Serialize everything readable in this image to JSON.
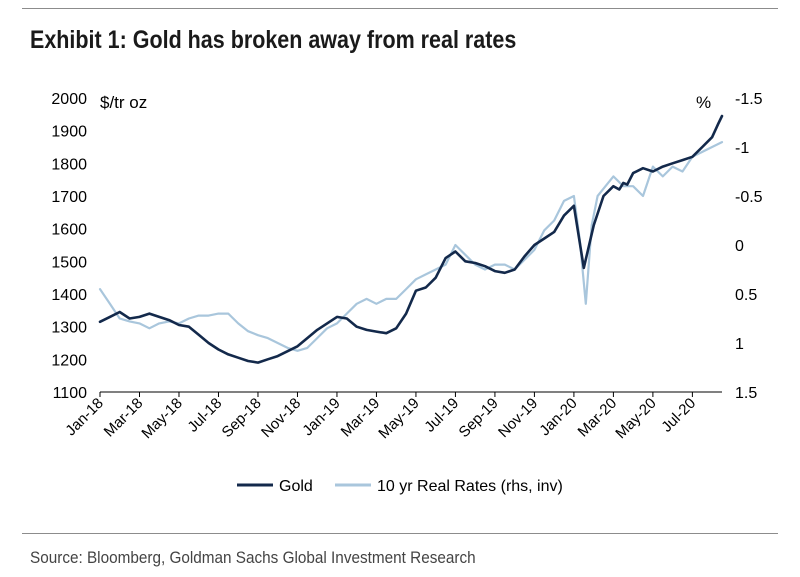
{
  "chart_data": {
    "type": "line",
    "title": "Exhibit 1: Gold has broken away from real rates",
    "source": "Source: Bloomberg, Goldman Sachs Global Investment Research",
    "left_unit": "$/tr oz",
    "right_unit": "%",
    "ylim_left": [
      1100,
      2000
    ],
    "yticks_left": [
      "2000",
      "1900",
      "1800",
      "1700",
      "1600",
      "1500",
      "1400",
      "1300",
      "1200",
      "1100"
    ],
    "ylim_right_inverted": [
      1.5,
      -1.5
    ],
    "yticks_right": [
      "-1.5",
      "-1",
      "-0.5",
      "0",
      "0.5",
      "1",
      "1.5"
    ],
    "xticks": [
      "Jan-18",
      "Mar-18",
      "May-18",
      "Jul-18",
      "Sep-18",
      "Nov-18",
      "Jan-19",
      "Mar-19",
      "May-19",
      "Jul-19",
      "Sep-19",
      "Nov-19",
      "Jan-20",
      "Mar-20",
      "May-20",
      "Jul-20"
    ],
    "series": [
      {
        "name": "Gold",
        "axis": "left",
        "color": "#13294b",
        "x": [
          0,
          0.5,
          1,
          1.5,
          2,
          2.5,
          3,
          3.5,
          4,
          4.5,
          5,
          5.5,
          6,
          6.5,
          7,
          7.5,
          8,
          8.5,
          9,
          9.5,
          10,
          10.5,
          11,
          11.5,
          12,
          12.5,
          13,
          13.5,
          14,
          14.5,
          15,
          15.5,
          16,
          16.5,
          17,
          17.5,
          18,
          18.5,
          19,
          19.5,
          20,
          20.5,
          21,
          21.5,
          22,
          22.5,
          23,
          23.5,
          24,
          24.5,
          25,
          25.5,
          26,
          26.3,
          26.5,
          26.7,
          27,
          27.5,
          28,
          28.5,
          29,
          29.5,
          30,
          30.5,
          31,
          31.3,
          31.5
        ],
        "values": [
          1315,
          1330,
          1345,
          1325,
          1330,
          1340,
          1330,
          1320,
          1305,
          1300,
          1275,
          1250,
          1230,
          1215,
          1205,
          1195,
          1190,
          1200,
          1210,
          1225,
          1240,
          1265,
          1290,
          1310,
          1330,
          1325,
          1300,
          1290,
          1285,
          1280,
          1295,
          1340,
          1410,
          1420,
          1450,
          1510,
          1530,
          1500,
          1495,
          1485,
          1470,
          1465,
          1475,
          1515,
          1550,
          1570,
          1590,
          1640,
          1670,
          1480,
          1610,
          1700,
          1730,
          1720,
          1740,
          1735,
          1770,
          1785,
          1775,
          1790,
          1800,
          1810,
          1820,
          1850,
          1880,
          1920,
          1945
        ]
      },
      {
        "name": "10 yr Real Rates (rhs, inv)",
        "axis": "right",
        "color": "#a9c6dc",
        "x": [
          0,
          0.5,
          1,
          1.5,
          2,
          2.5,
          3,
          3.5,
          4,
          4.5,
          5,
          5.5,
          6,
          6.5,
          7,
          7.5,
          8,
          8.5,
          9,
          9.5,
          10,
          10.5,
          11,
          11.5,
          12,
          12.5,
          13,
          13.5,
          14,
          14.5,
          15,
          15.5,
          16,
          16.5,
          17,
          17.5,
          18,
          18.5,
          19,
          19.5,
          20,
          20.5,
          21,
          21.5,
          22,
          22.5,
          23,
          23.5,
          24,
          24.3,
          24.6,
          24.9,
          25.2,
          25.6,
          26,
          26.5,
          27,
          27.5,
          28,
          28.5,
          29,
          29.5,
          30,
          30.5,
          31,
          31.5
        ],
        "values": [
          0.45,
          0.6,
          0.75,
          0.78,
          0.8,
          0.85,
          0.8,
          0.78,
          0.8,
          0.75,
          0.72,
          0.72,
          0.7,
          0.7,
          0.8,
          0.88,
          0.92,
          0.95,
          1.0,
          1.05,
          1.08,
          1.05,
          0.95,
          0.85,
          0.8,
          0.7,
          0.6,
          0.55,
          0.6,
          0.55,
          0.55,
          0.45,
          0.35,
          0.3,
          0.25,
          0.2,
          0.0,
          0.1,
          0.2,
          0.25,
          0.2,
          0.2,
          0.25,
          0.15,
          0.05,
          -0.15,
          -0.25,
          -0.45,
          -0.5,
          -0.05,
          0.6,
          -0.2,
          -0.5,
          -0.6,
          -0.7,
          -0.6,
          -0.6,
          -0.5,
          -0.8,
          -0.7,
          -0.8,
          -0.75,
          -0.9,
          -0.95,
          -1.0,
          -1.05
        ]
      }
    ],
    "legend": [
      "Gold",
      "10 yr Real Rates (rhs, inv)"
    ]
  }
}
